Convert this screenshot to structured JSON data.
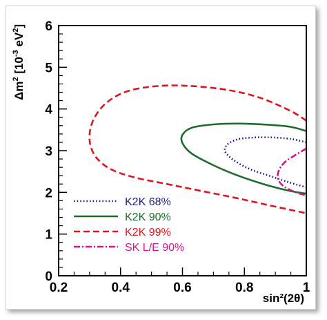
{
  "chart_data": {
    "type": "line",
    "title": "",
    "xlabel": "sin²(2θ)",
    "ylabel_parts": {
      "delta": "Δm",
      "sup1": "2",
      "bracket": " [10",
      "sup2": "-3",
      "unit": " eV",
      "sup3": "2",
      "close": "]"
    },
    "xlim": [
      0.2,
      1.0
    ],
    "ylim": [
      0,
      6
    ],
    "xticks": [
      0.2,
      0.4,
      0.6,
      0.8,
      1
    ],
    "xtick_labels": [
      "0.2",
      "0.4",
      "0.6",
      "0.8",
      "1"
    ],
    "yticks": [
      0,
      1,
      2,
      3,
      4,
      5,
      6
    ],
    "ytick_labels": [
      "0",
      "1",
      "2",
      "3",
      "4",
      "5",
      "6"
    ],
    "grid": false,
    "legend_position": "lower-left",
    "series": [
      {
        "name": "K2K 68%",
        "color": "#1c1c7a",
        "style": "dotted",
        "points": [
          [
            1.0,
            3.2
          ],
          [
            0.95,
            3.28
          ],
          [
            0.88,
            3.32
          ],
          [
            0.8,
            3.3
          ],
          [
            0.76,
            3.22
          ],
          [
            0.74,
            3.1
          ],
          [
            0.74,
            2.95
          ],
          [
            0.77,
            2.75
          ],
          [
            0.82,
            2.55
          ],
          [
            0.88,
            2.4
          ],
          [
            0.94,
            2.25
          ],
          [
            1.0,
            2.12
          ]
        ]
      },
      {
        "name": "K2K 90%",
        "color": "#1f6b2e",
        "style": "solid",
        "points": [
          [
            1.0,
            3.47
          ],
          [
            0.95,
            3.57
          ],
          [
            0.88,
            3.62
          ],
          [
            0.78,
            3.65
          ],
          [
            0.7,
            3.63
          ],
          [
            0.63,
            3.55
          ],
          [
            0.6,
            3.38
          ],
          [
            0.6,
            3.18
          ],
          [
            0.63,
            2.93
          ],
          [
            0.7,
            2.65
          ],
          [
            0.78,
            2.4
          ],
          [
            0.87,
            2.18
          ],
          [
            0.95,
            2.03
          ],
          [
            1.0,
            1.97
          ]
        ]
      },
      {
        "name": "K2K 99%",
        "color": "#e0141e",
        "style": "dashed",
        "points": [
          [
            1.0,
            3.72
          ],
          [
            0.95,
            3.95
          ],
          [
            0.85,
            4.27
          ],
          [
            0.75,
            4.45
          ],
          [
            0.63,
            4.55
          ],
          [
            0.52,
            4.55
          ],
          [
            0.42,
            4.42
          ],
          [
            0.35,
            4.12
          ],
          [
            0.31,
            3.7
          ],
          [
            0.3,
            3.25
          ],
          [
            0.32,
            2.85
          ],
          [
            0.37,
            2.55
          ],
          [
            0.45,
            2.35
          ],
          [
            0.55,
            2.2
          ],
          [
            0.65,
            2.05
          ],
          [
            0.77,
            1.87
          ],
          [
            0.88,
            1.69
          ],
          [
            1.0,
            1.5
          ]
        ]
      },
      {
        "name": "SK L/E 90%",
        "color": "#d6148a",
        "style": "dashdot",
        "points": [
          [
            1.0,
            3.05
          ],
          [
            0.97,
            2.92
          ],
          [
            0.93,
            2.72
          ],
          [
            0.91,
            2.5
          ],
          [
            0.91,
            2.3
          ],
          [
            0.93,
            2.13
          ],
          [
            0.97,
            1.99
          ],
          [
            1.0,
            1.93
          ]
        ]
      }
    ]
  }
}
